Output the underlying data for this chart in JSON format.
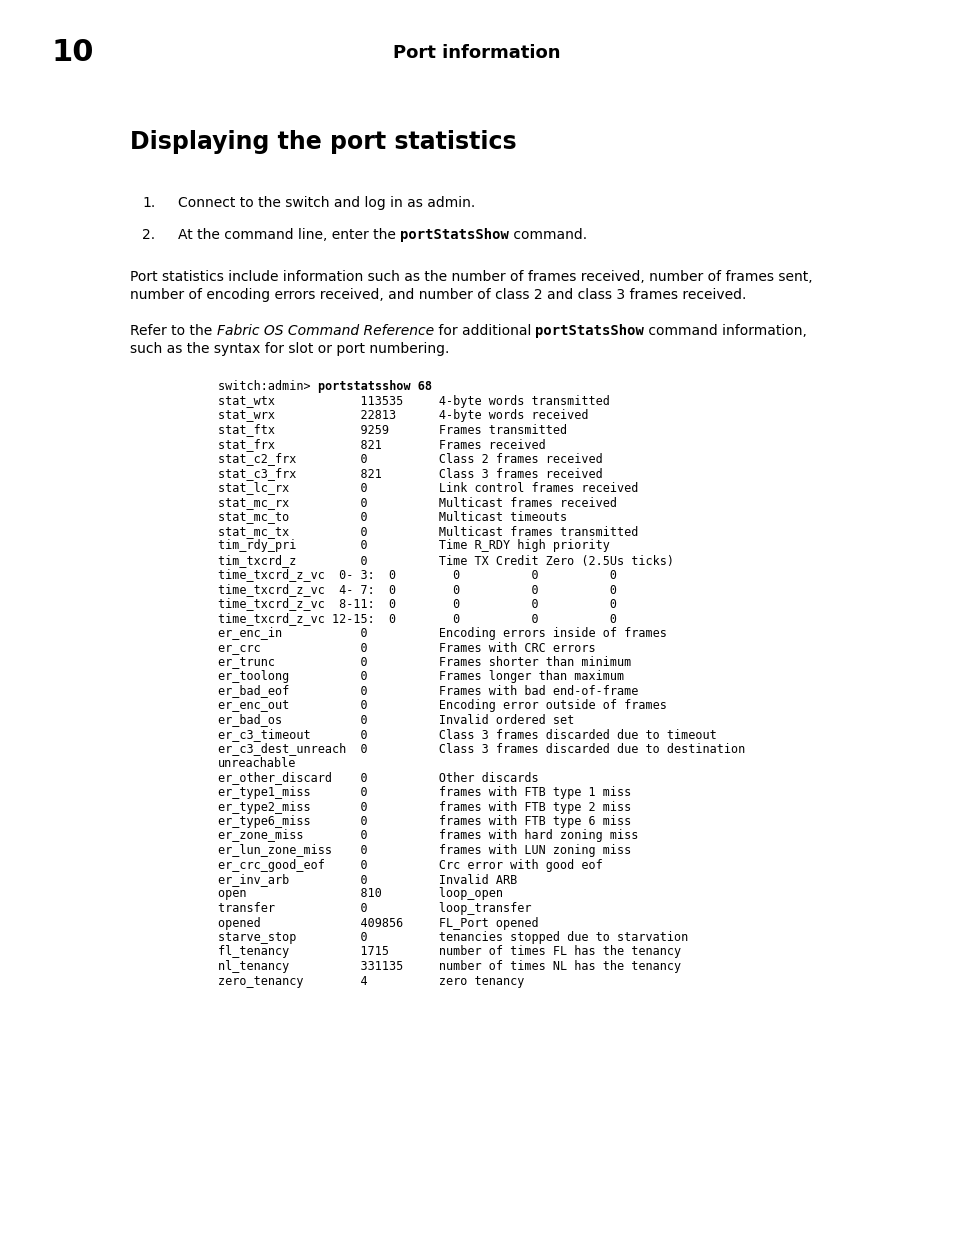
{
  "page_number": "10",
  "page_title": "Port information",
  "section_title": "Displaying the port statistics",
  "background_color": "#ffffff",
  "text_color": "#000000",
  "step1": "Connect to the switch and log in as admin.",
  "step2_prefix": "At the command line, enter the ",
  "step2_bold": "portStatsShow",
  "step2_suffix": " command.",
  "para1_line1": "Port statistics include information such as the number of frames received, number of frames sent,",
  "para1_line2": "number of encoding errors received, and number of class 2 and class 3 frames received.",
  "para2_prefix": "Refer to the ",
  "para2_italic": "Fabric OS Command Reference",
  "para2_middle": " for additional ",
  "para2_bold": "portStatsShow",
  "para2_suffix": " command information,",
  "para2_line2": "such as the syntax for slot or port numbering.",
  "code_first_prefix": "switch:admin> ",
  "code_first_bold": "portstatsshow 68",
  "code_lines": [
    "stat_wtx            113535     4-byte words transmitted",
    "stat_wrx            22813      4-byte words received",
    "stat_ftx            9259       Frames transmitted",
    "stat_frx            821        Frames received",
    "stat_c2_frx         0          Class 2 frames received",
    "stat_c3_frx         821        Class 3 frames received",
    "stat_lc_rx          0          Link control frames received",
    "stat_mc_rx          0          Multicast frames received",
    "stat_mc_to          0          Multicast timeouts",
    "stat_mc_tx          0          Multicast frames transmitted",
    "tim_rdy_pri         0          Time R_RDY high priority",
    "tim_txcrd_z         0          Time TX Credit Zero (2.5Us ticks)",
    "time_txcrd_z_vc  0- 3:  0        0          0          0",
    "time_txcrd_z_vc  4- 7:  0        0          0          0",
    "time_txcrd_z_vc  8-11:  0        0          0          0",
    "time_txcrd_z_vc 12-15:  0        0          0          0",
    "er_enc_in           0          Encoding errors inside of frames",
    "er_crc              0          Frames with CRC errors",
    "er_trunc            0          Frames shorter than minimum",
    "er_toolong          0          Frames longer than maximum",
    "er_bad_eof          0          Frames with bad end-of-frame",
    "er_enc_out          0          Encoding error outside of frames",
    "er_bad_os           0          Invalid ordered set",
    "er_c3_timeout       0          Class 3 frames discarded due to timeout",
    "er_c3_dest_unreach  0          Class 3 frames discarded due to destination",
    "unreachable",
    "er_other_discard    0          Other discards",
    "er_type1_miss       0          frames with FTB type 1 miss",
    "er_type2_miss       0          frames with FTB type 2 miss",
    "er_type6_miss       0          frames with FTB type 6 miss",
    "er_zone_miss        0          frames with hard zoning miss",
    "er_lun_zone_miss    0          frames with LUN zoning miss",
    "er_crc_good_eof     0          Crc error with good eof",
    "er_inv_arb          0          Invalid ARB",
    "open                810        loop_open",
    "transfer            0          loop_transfer",
    "opened              409856     FL_Port opened",
    "starve_stop         0          tenancies stopped due to starvation",
    "fl_tenancy          1715       number of times FL has the tenancy",
    "nl_tenancy          331135     number of times NL has the tenancy",
    "zero_tenancy        4          zero tenancy"
  ]
}
